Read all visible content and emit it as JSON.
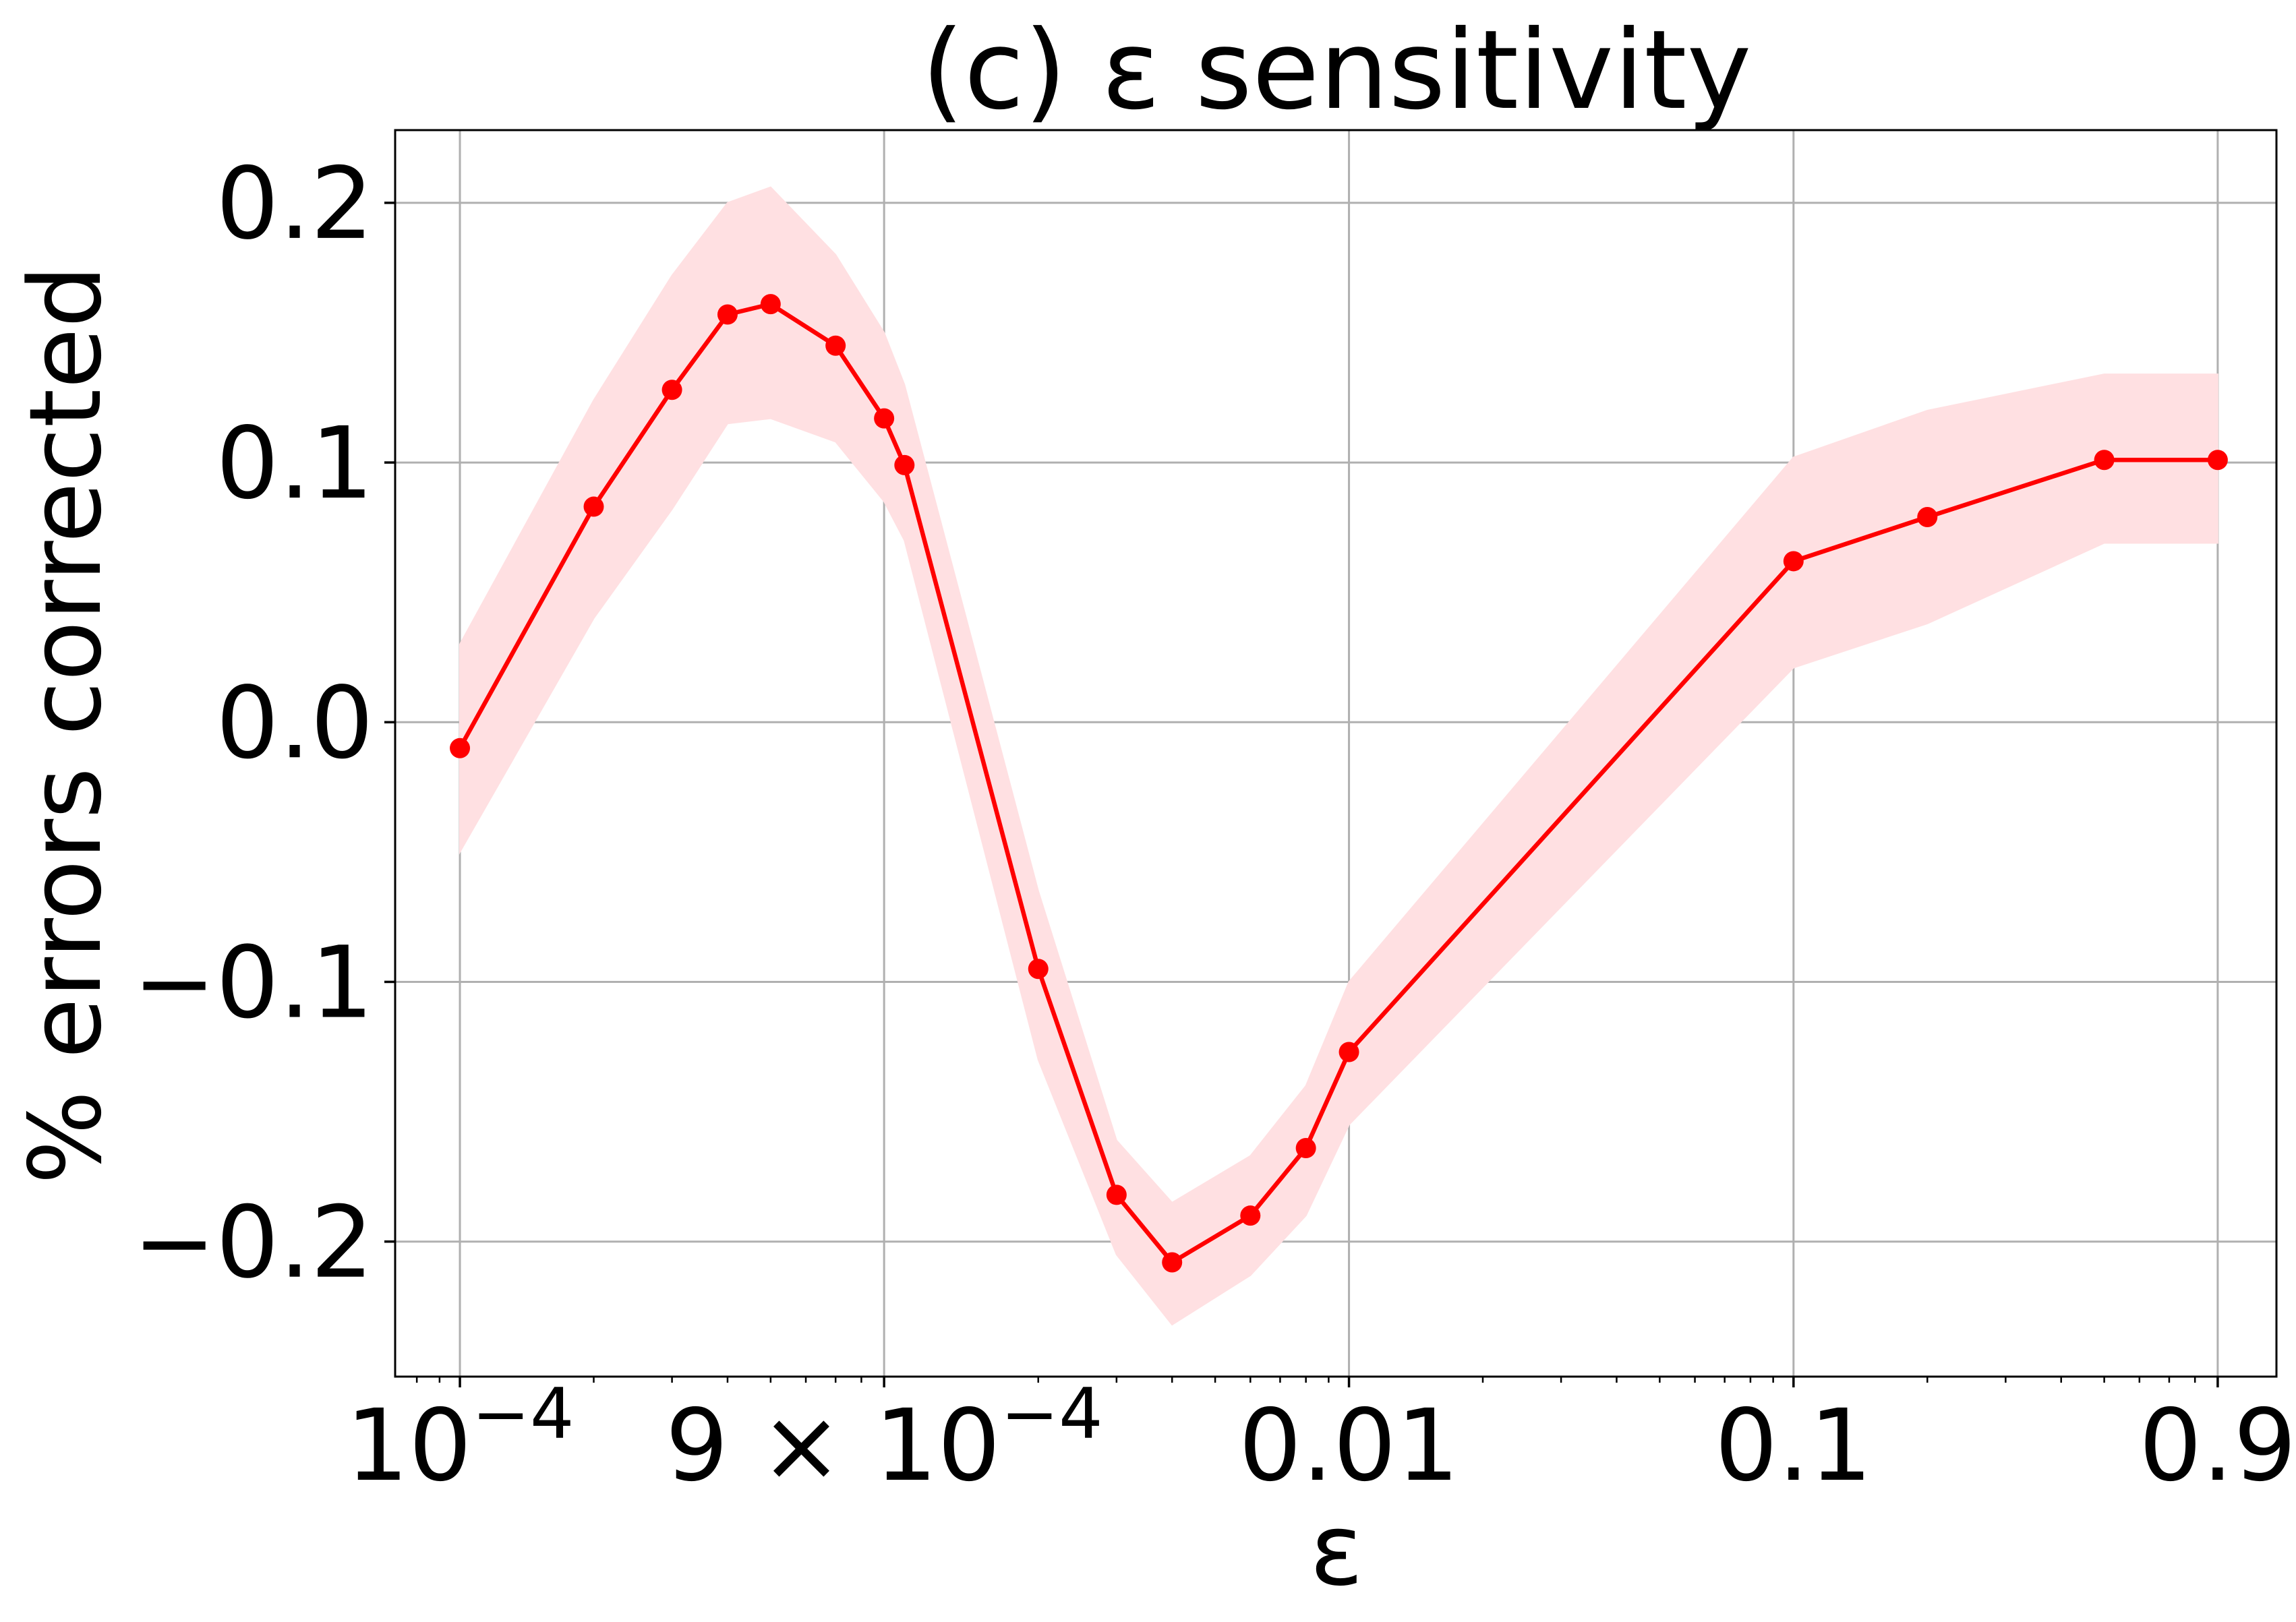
{
  "chart_data": {
    "type": "line",
    "title": "(c) ε sensitivity",
    "xlabel": "ε",
    "ylabel": "% errors corrected",
    "x_scale": "log",
    "xlim": [
      7.15e-05,
      1.22
    ],
    "ylim": [
      -0.252,
      0.228
    ],
    "grid": true,
    "color": "#ff0000",
    "band_color": "#ffe0e2",
    "x_ticks": [
      {
        "value": 0.0001,
        "base": "10",
        "sup": "−4"
      },
      {
        "value": 0.0009,
        "base": "9 × 10",
        "sup": "−4"
      },
      {
        "value": 0.01,
        "label": "0.01"
      },
      {
        "value": 0.1,
        "label": "0.1"
      },
      {
        "value": 0.9,
        "label": "0.9"
      }
    ],
    "y_ticks": [
      {
        "value": 0.2,
        "label": "0.2"
      },
      {
        "value": 0.1,
        "label": "0.1"
      },
      {
        "value": 0.0,
        "label": "0.0"
      },
      {
        "value": -0.1,
        "label": "−0.1"
      },
      {
        "value": -0.2,
        "label": "−0.2"
      }
    ],
    "series": [
      {
        "x": [
          0.0001,
          0.0002,
          0.0003,
          0.0004,
          0.0005,
          0.0007,
          0.0009,
          0.001,
          0.002,
          0.003,
          0.004,
          0.006,
          0.008,
          0.01,
          0.1,
          0.2,
          0.5,
          0.9
        ],
        "y": [
          -0.01,
          0.083,
          0.128,
          0.157,
          0.161,
          0.145,
          0.117,
          0.099,
          -0.095,
          -0.182,
          -0.208,
          -0.19,
          -0.164,
          -0.127,
          0.062,
          0.079,
          0.101,
          0.101
        ],
        "lower": [
          -0.05,
          0.04,
          0.082,
          0.115,
          0.117,
          0.108,
          0.085,
          0.07,
          -0.13,
          -0.205,
          -0.232,
          -0.213,
          -0.19,
          -0.155,
          0.021,
          0.038,
          0.069,
          0.069
        ],
        "upper": [
          0.03,
          0.124,
          0.172,
          0.2,
          0.206,
          0.18,
          0.15,
          0.13,
          -0.065,
          -0.161,
          -0.185,
          -0.167,
          -0.14,
          -0.1,
          0.102,
          0.12,
          0.134,
          0.134
        ]
      }
    ]
  }
}
